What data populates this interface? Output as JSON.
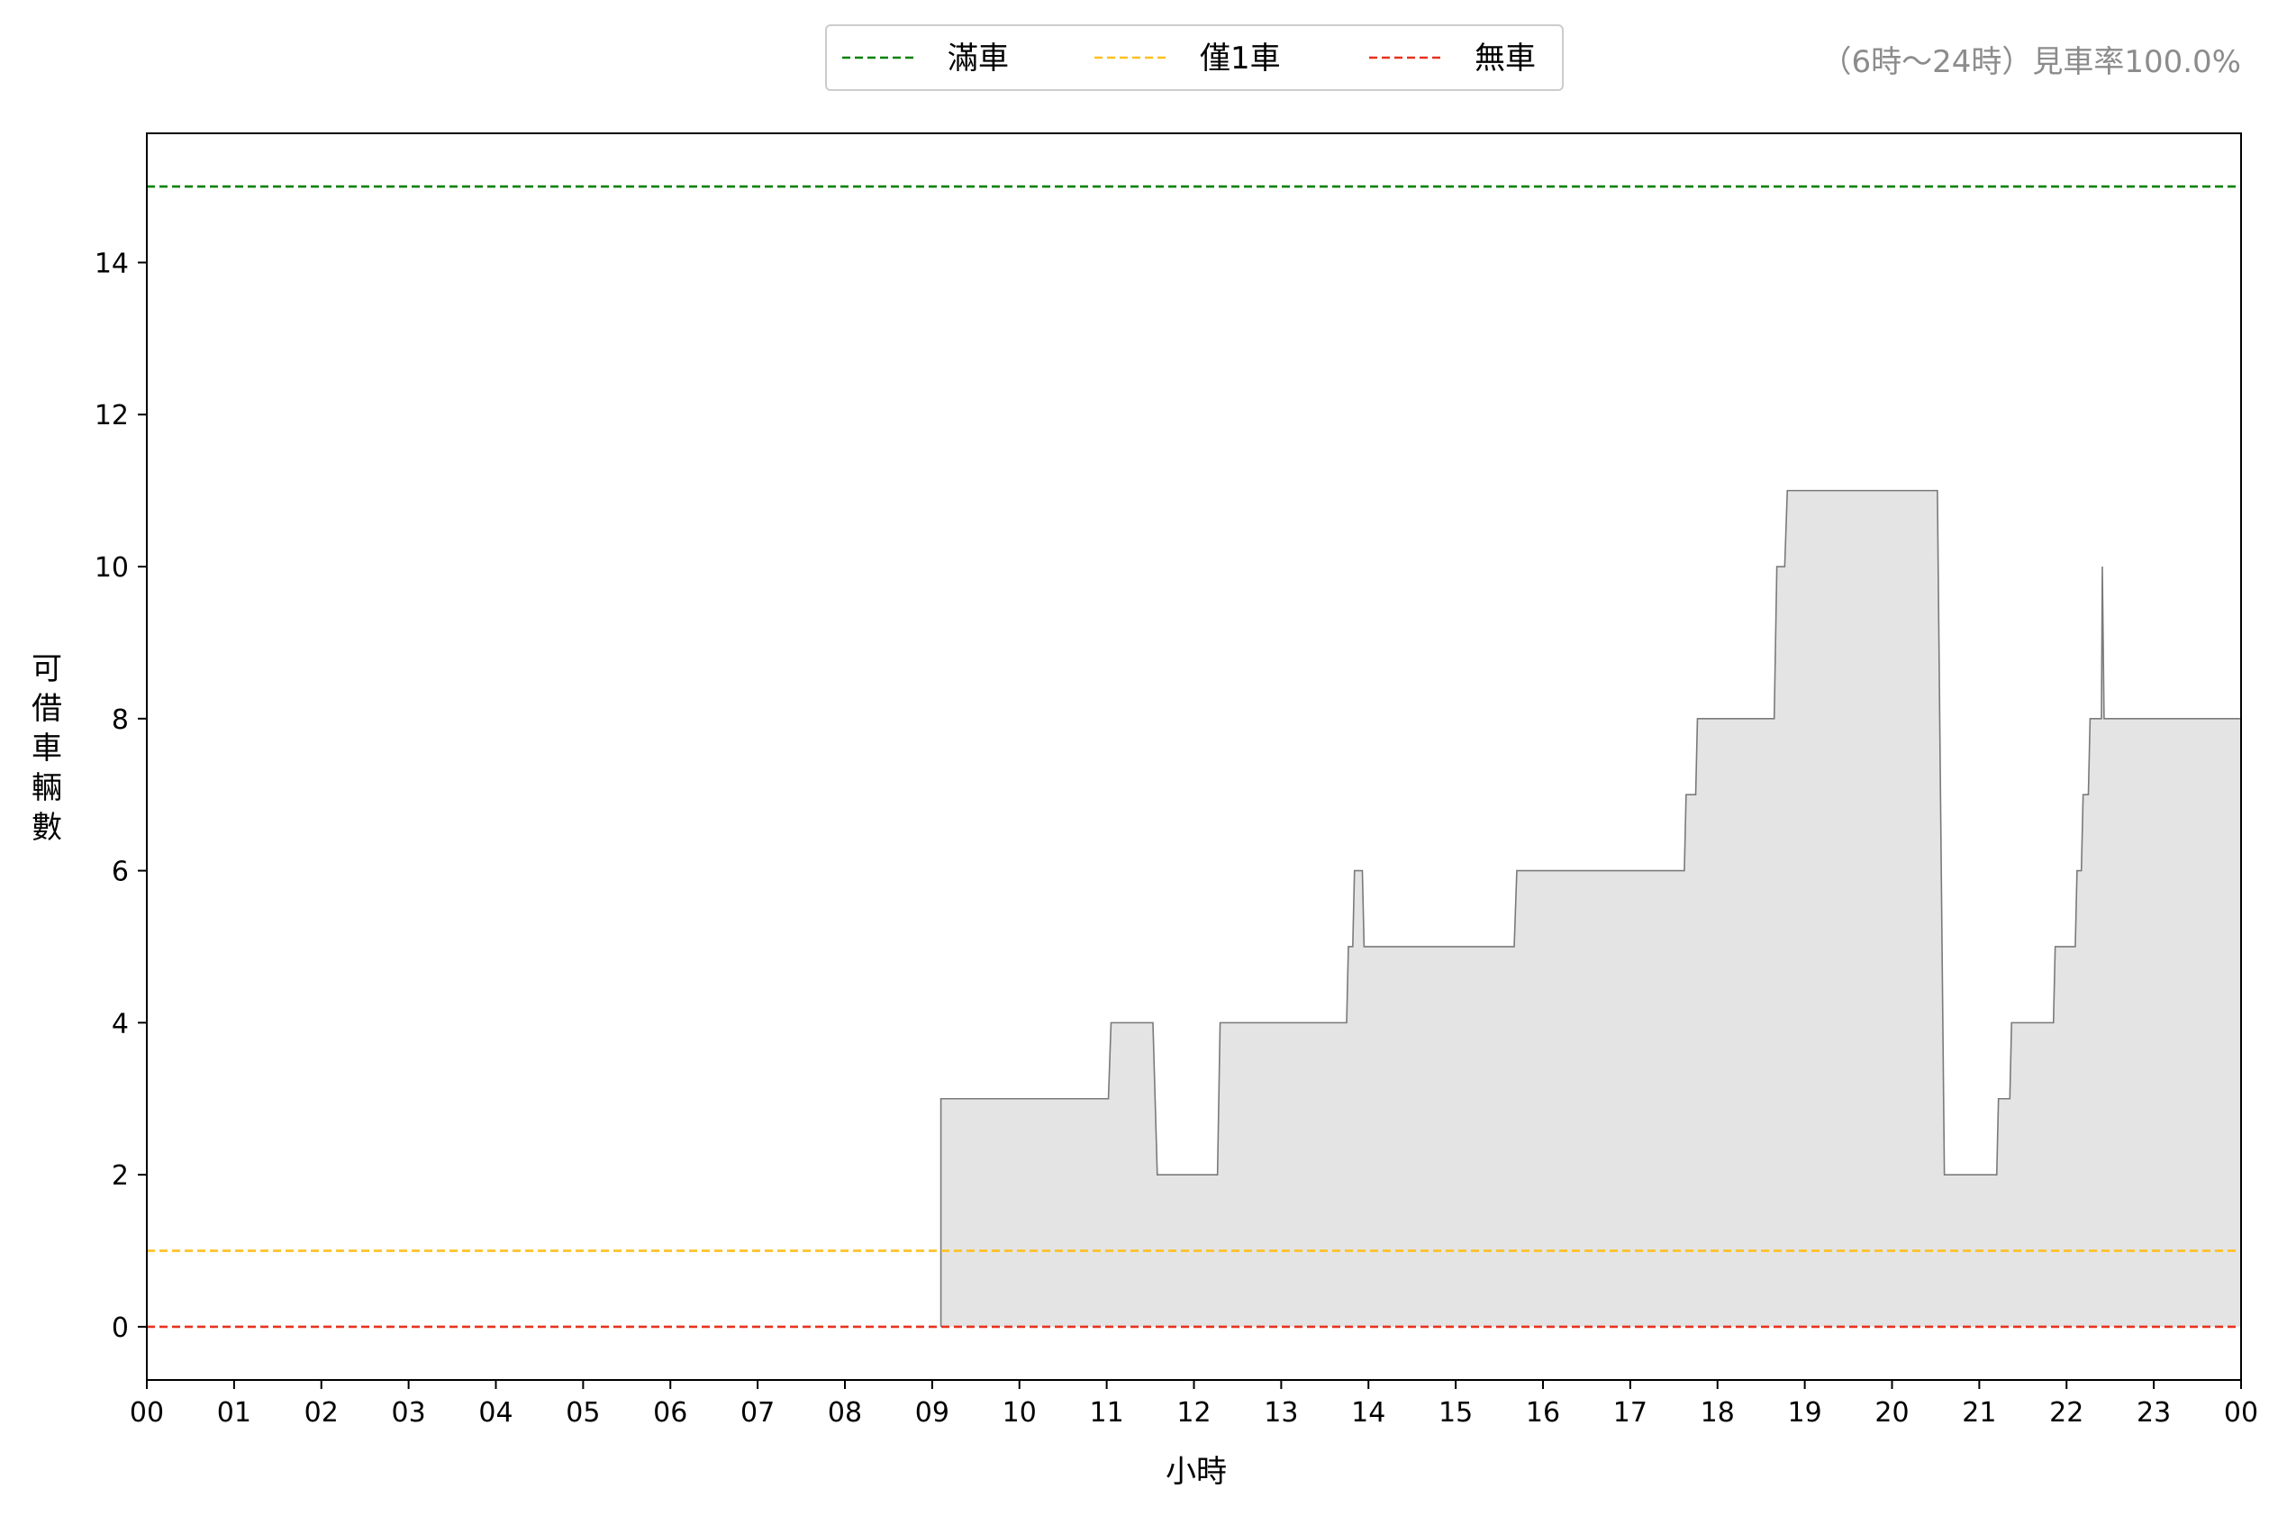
{
  "chart_data": {
    "type": "area",
    "xlabel": "小時",
    "ylabel": "可借車輛數",
    "xtick_labels": [
      "00",
      "01",
      "02",
      "03",
      "04",
      "05",
      "06",
      "07",
      "08",
      "09",
      "10",
      "11",
      "12",
      "13",
      "14",
      "15",
      "16",
      "17",
      "18",
      "19",
      "20",
      "21",
      "22",
      "23",
      "00"
    ],
    "xlim": [
      0,
      24
    ],
    "ylim": [
      -0.7,
      15.7
    ],
    "yticks": [
      0,
      2,
      4,
      6,
      8,
      10,
      12,
      14
    ],
    "grid": false,
    "legend_position": "top-center",
    "annotation": "（6時～24時）見車率100.0%",
    "reference_lines": [
      {
        "name": "滿車",
        "value": 15,
        "color": "#008000",
        "style": "dashed"
      },
      {
        "name": "僅1車",
        "value": 1,
        "color": "#FFC020",
        "style": "dashed"
      },
      {
        "name": "無車",
        "value": 0,
        "color": "#E8321E",
        "style": "dashed"
      }
    ],
    "series": [
      {
        "fill_color": "#e4e4e4",
        "line_color": "#7a7a7a",
        "x": [
          9.1,
          9.1,
          11.02,
          11.05,
          11.53,
          11.58,
          12.27,
          12.3,
          13.75,
          13.77,
          13.82,
          13.84,
          13.93,
          13.95,
          15.67,
          15.7,
          17.62,
          17.64,
          17.75,
          17.77,
          18.65,
          18.68,
          18.77,
          18.8,
          20.52,
          20.6,
          21.2,
          21.22,
          21.35,
          21.37,
          21.85,
          21.87,
          22.1,
          22.12,
          22.17,
          22.19,
          22.25,
          22.27,
          22.4,
          22.41,
          22.43,
          22.45,
          24.0
        ],
        "y": [
          0,
          3,
          3,
          4,
          4,
          2,
          2,
          4,
          4,
          5,
          5,
          6,
          6,
          5,
          5,
          6,
          6,
          7,
          7,
          8,
          8,
          10,
          10,
          11,
          11,
          2,
          2,
          3,
          3,
          4,
          4,
          5,
          5,
          6,
          6,
          7,
          7,
          8,
          8,
          10,
          8,
          8,
          8
        ]
      }
    ]
  }
}
